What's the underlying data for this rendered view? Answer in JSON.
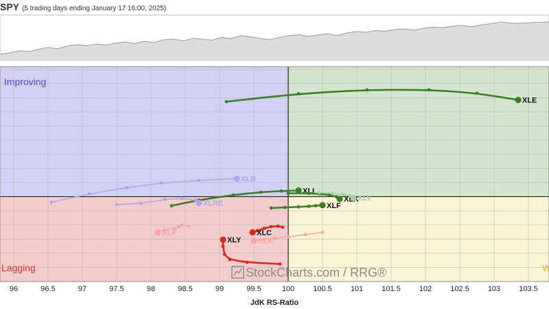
{
  "header": {
    "ticker": "SPY",
    "subtitle": "(5 trading days ending January 17 16:00, 2025)"
  },
  "watermark": "StockCharts.com / RRG®",
  "colors": {
    "improving_bg": "#d3d1f3",
    "leading_bg": "#d4e5cd",
    "lagging_bg": "#f4cccc",
    "weakening_bg": "#fbf3d5",
    "improving_text": "#4f4fc4",
    "lagging_text": "#d03a2a",
    "weakening_text": "#d8b83a",
    "green": "#3c7d2a",
    "red": "#d92b1c",
    "benchmark_line": "#999999",
    "benchmark_fill": "#dddddd"
  },
  "chart_data": {
    "type": "scatter",
    "subtype": "relative-rotation-graph",
    "xlabel": "JdK RS-Ratio",
    "xlim": [
      95.8,
      103.8
    ],
    "ylim": [
      98.5,
      102.3
    ],
    "x_ticks": [
      "96",
      "96.5",
      "97",
      "97.5",
      "98",
      "98.5",
      "99",
      "99.5",
      "100",
      "100.5",
      "101",
      "101.5",
      "102",
      "102.5",
      "103",
      "103.5"
    ],
    "grid": true,
    "quadrants": {
      "improving": "Improving",
      "lagging": "Lagging",
      "weakening": "W"
    },
    "benchmark": {
      "name": "SPY",
      "values": [
        0.06,
        0.1,
        0.16,
        0.14,
        0.2,
        0.26,
        0.22,
        0.3,
        0.34,
        0.31,
        0.36,
        0.33,
        0.38,
        0.42,
        0.37,
        0.44,
        0.4,
        0.48,
        0.5,
        0.45,
        0.52,
        0.5,
        0.47,
        0.55,
        0.52,
        0.6,
        0.57,
        0.52,
        0.48,
        0.55,
        0.6,
        0.63,
        0.58,
        0.62,
        0.66,
        0.6,
        0.68,
        0.72,
        0.7,
        0.75,
        0.73,
        0.78,
        0.8,
        0.76,
        0.82,
        0.85,
        0.83,
        0.88,
        0.9,
        0.86,
        0.92,
        0.95,
        1.0,
        0.97,
        0.96,
        0.98,
        0.99,
        1.0
      ]
    },
    "series": [
      {
        "name": "XLE",
        "faded": false,
        "color": "green",
        "label_side": "right",
        "x": [
          99.1,
          100.15,
          101.15,
          102.05,
          102.75,
          103.35
        ],
        "y": [
          101.68,
          101.82,
          101.89,
          101.89,
          101.83,
          101.71
        ]
      },
      {
        "name": "XLI",
        "faded": false,
        "color": "green",
        "label_side": "right",
        "x": [
          98.3,
          98.7,
          99.2,
          99.6,
          99.9,
          100.15
        ],
        "y": [
          99.84,
          99.94,
          100.03,
          100.08,
          100.1,
          100.11
        ]
      },
      {
        "name": "XLF",
        "faded": false,
        "color": "green",
        "label_side": "right",
        "x": [
          99.75,
          99.95,
          100.15,
          100.3,
          100.4,
          100.5
        ],
        "y": [
          99.8,
          99.81,
          99.82,
          99.83,
          99.84,
          99.85
        ]
      },
      {
        "name": "XLC",
        "faded": false,
        "color": "red",
        "label_side": "right",
        "x": [
          99.92,
          99.85,
          99.75,
          99.65,
          99.55,
          99.48
        ],
        "y": [
          99.46,
          99.48,
          99.47,
          99.44,
          99.4,
          99.37
        ]
      },
      {
        "name": "XLY",
        "faded": false,
        "color": "red",
        "label_side": "right",
        "x": [
          99.88,
          99.4,
          99.15,
          99.07,
          99.05,
          99.05
        ],
        "y": [
          98.81,
          98.84,
          98.89,
          98.98,
          99.12,
          99.24
        ]
      },
      {
        "name": "XLB",
        "faded": true,
        "color": "blue",
        "label_side": "right",
        "x": [
          96.55,
          97.1,
          97.65,
          98.15,
          98.7,
          99.25
        ],
        "y": [
          99.9,
          100.05,
          100.16,
          100.24,
          100.29,
          100.32
        ]
      },
      {
        "name": "XLRE",
        "faded": true,
        "color": "blue",
        "label_side": "right",
        "x": [
          97.5,
          97.85,
          98.2,
          98.45,
          98.65,
          98.7
        ],
        "y": [
          99.86,
          99.88,
          99.95,
          99.97,
          99.94,
          99.89
        ]
      },
      {
        "name": "XLK",
        "faded": false,
        "color": "green",
        "label_side": "right",
        "x": [
          100.0,
          100.3,
          100.45,
          100.6,
          100.7,
          100.75
        ],
        "y": [
          100.06,
          100.06,
          100.05,
          100.03,
          100.0,
          99.96
        ]
      },
      {
        "name": "XLV",
        "faded": true,
        "color": "green",
        "label_side": "right",
        "x": [
          100.45,
          100.65,
          100.8,
          100.9,
          100.95,
          100.95
        ],
        "y": [
          100.07,
          100.06,
          100.04,
          100.01,
          99.99,
          99.98
        ]
      },
      {
        "name": "XLP",
        "faded": true,
        "color": "red",
        "label_side": "right",
        "x": [
          98.55,
          98.45,
          98.4,
          98.35,
          98.2,
          98.1
        ],
        "y": [
          99.48,
          99.5,
          99.47,
          99.44,
          99.41,
          99.37
        ]
      },
      {
        "name": "XLK",
        "faded": true,
        "color": "red",
        "label_side": "right",
        "x": [
          100.5,
          100.25,
          100.0,
          99.8,
          99.65,
          99.5
        ],
        "y": [
          99.37,
          99.33,
          99.29,
          99.26,
          99.24,
          99.22
        ]
      }
    ]
  }
}
